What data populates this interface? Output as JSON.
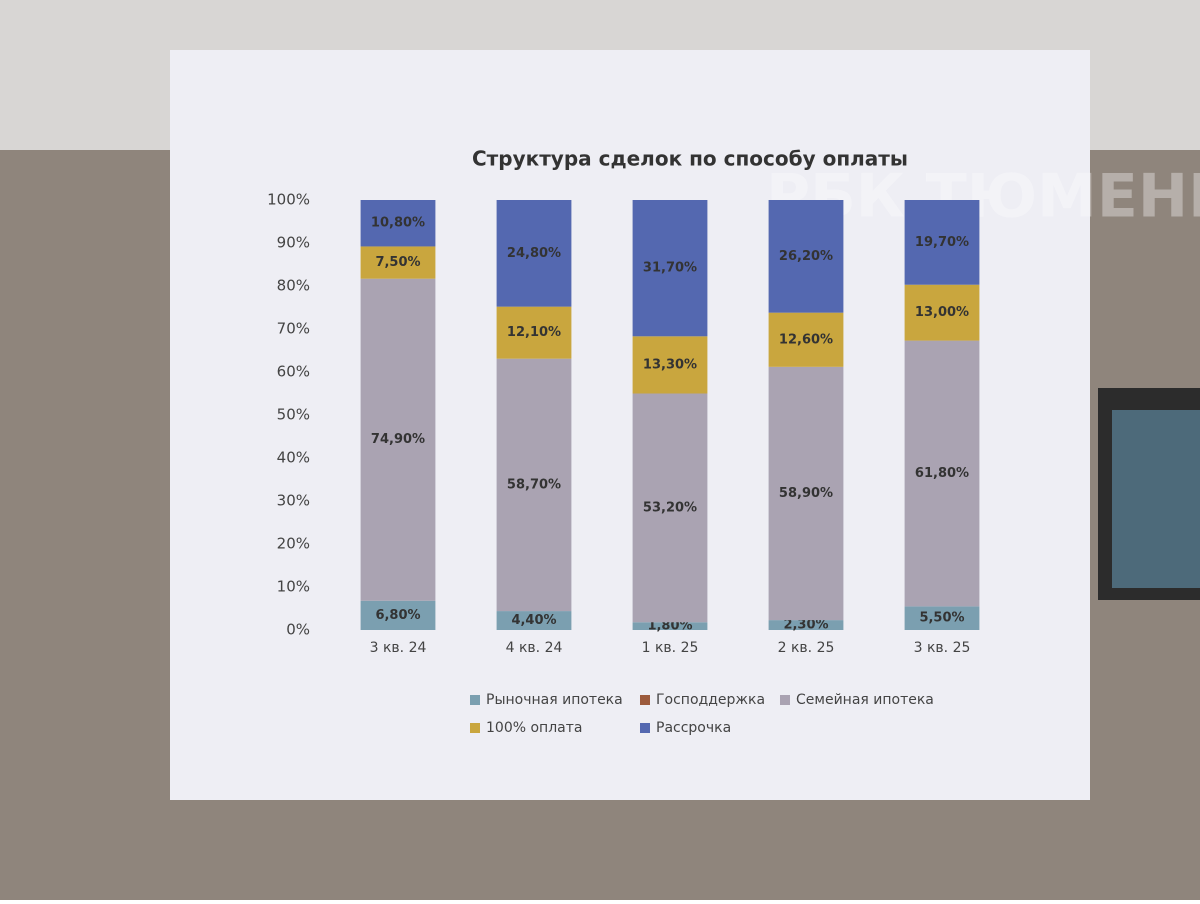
{
  "chart_data": {
    "type": "stacked_bar",
    "title": "Структура сделок по способу оплаты",
    "watermark": "РБК ТЮМЕНЬ",
    "categories": [
      "3 кв. 24",
      "4 кв. 24",
      "1 кв. 25",
      "2 кв. 25",
      "3 кв. 25"
    ],
    "series": [
      {
        "name": "Рыночная ипотека",
        "color": "#7b9fb0",
        "values": [
          6.8,
          4.4,
          1.8,
          2.3,
          5.5
        ],
        "value_labels": [
          "6,80%",
          "4,40%",
          "1,80%",
          "2,30%",
          "5,50%"
        ]
      },
      {
        "name": "Господдержка",
        "color": "#9c5a3c",
        "values": [
          0,
          0,
          0,
          0,
          0
        ]
      },
      {
        "name": "Семейная ипотека",
        "color": "#aaa3b2",
        "values": [
          74.9,
          58.7,
          53.2,
          58.9,
          61.8
        ],
        "value_labels": [
          "74,90%",
          "58,70%",
          "53,20%",
          "58,90%",
          "61,80%"
        ]
      },
      {
        "name": "100% оплата",
        "color": "#c9a63e",
        "values": [
          7.5,
          12.1,
          13.3,
          12.6,
          13.0
        ],
        "value_labels": [
          "7,50%",
          "12,10%",
          "13,30%",
          "12,60%",
          "13,00%"
        ]
      },
      {
        "name": "Рассрочка",
        "color": "#5468b0",
        "values": [
          10.8,
          24.8,
          31.7,
          26.2,
          19.7
        ],
        "value_labels": [
          "10,80%",
          "24,80%",
          "31,70%",
          "26,20%",
          "19,70%"
        ]
      }
    ],
    "ylim": [
      0,
      100
    ],
    "yticks": [
      {
        "value": 0,
        "label": "0%"
      },
      {
        "value": 10,
        "label": "10%"
      },
      {
        "value": 20,
        "label": "20%"
      },
      {
        "value": 30,
        "label": "30%"
      },
      {
        "value": 40,
        "label": "40%"
      },
      {
        "value": 50,
        "label": "50%"
      },
      {
        "value": 60,
        "label": "60%"
      },
      {
        "value": 70,
        "label": "70%"
      },
      {
        "value": 80,
        "label": "80%"
      },
      {
        "value": 90,
        "label": "90%"
      },
      {
        "value": 100,
        "label": "100%"
      }
    ],
    "grid": false,
    "legend": "bottom"
  }
}
